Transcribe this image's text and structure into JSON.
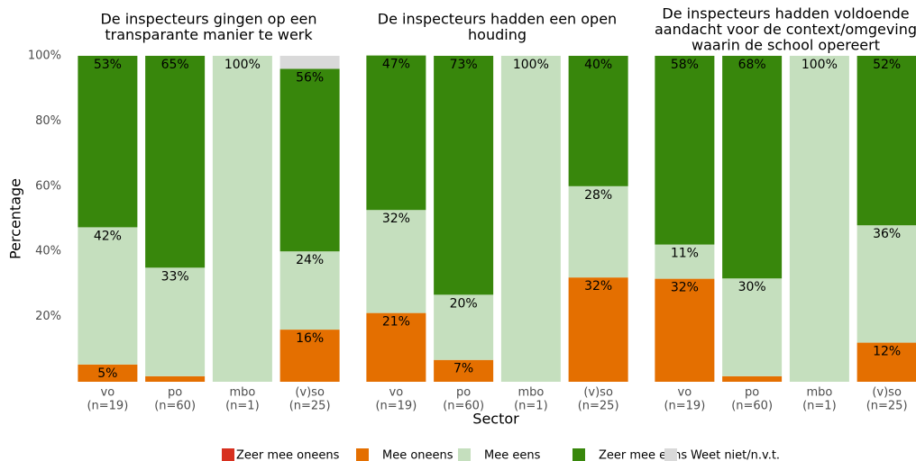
{
  "y_label": "Percentage",
  "x_label": "Sector",
  "chart_data": [
    {
      "type": "stacked_bar",
      "title": [
        "De inspecteurs gingen op een",
        "transparante manier te werk"
      ],
      "categories": [
        "vo",
        "po",
        "mbo",
        "(v)so"
      ],
      "n_labels": [
        "(n=19)",
        "(n=60)",
        "(n=1)",
        "(n=25)"
      ],
      "ylim": [
        0,
        100
      ],
      "yticks": [
        {
          "value": 20,
          "label": "20%"
        },
        {
          "value": 40,
          "label": "40%"
        },
        {
          "value": 60,
          "label": "60%"
        },
        {
          "value": 80,
          "label": "80%"
        },
        {
          "value": 100,
          "label": "100%"
        }
      ],
      "grid": false,
      "series": [
        {
          "name": "Zeer mee oneens",
          "color": "#d7301f",
          "values": [
            0,
            0,
            0,
            0
          ],
          "value_labels": [
            null,
            null,
            null,
            null
          ]
        },
        {
          "name": "Mee oneens",
          "color": "#e46f00",
          "values": [
            5.3,
            1.7,
            0,
            16
          ],
          "value_labels": [
            "5%",
            null,
            null,
            "16%"
          ]
        },
        {
          "name": "Mee eens",
          "color": "#c5dfbe",
          "values": [
            42.1,
            33.3,
            100,
            24
          ],
          "value_labels": [
            "42%",
            "33%",
            "100%",
            "24%"
          ]
        },
        {
          "name": "Zeer mee eens",
          "color": "#38870c",
          "values": [
            52.6,
            65,
            0,
            56
          ],
          "value_labels": [
            "53%",
            "65%",
            null,
            "56%"
          ]
        },
        {
          "name": "Weet niet/n.v.t.",
          "color": "#d9d9d9",
          "values": [
            0,
            0,
            0,
            4
          ],
          "value_labels": [
            null,
            null,
            null,
            null
          ]
        }
      ]
    },
    {
      "type": "stacked_bar",
      "title": [
        "De inspecteurs hadden een open",
        "houding"
      ],
      "categories": [
        "vo",
        "po",
        "mbo",
        "(v)so"
      ],
      "n_labels": [
        "(n=19)",
        "(n=60)",
        "(n=1)",
        "(n=25)"
      ],
      "ylim": [
        0,
        100
      ],
      "series": [
        {
          "name": "Zeer mee oneens",
          "color": "#d7301f",
          "values": [
            0,
            0,
            0,
            0
          ],
          "value_labels": [
            null,
            null,
            null,
            null
          ]
        },
        {
          "name": "Mee oneens",
          "color": "#e46f00",
          "values": [
            21.1,
            6.7,
            0,
            32
          ],
          "value_labels": [
            "21%",
            "7%",
            null,
            "32%"
          ]
        },
        {
          "name": "Mee eens",
          "color": "#c5dfbe",
          "values": [
            31.6,
            20,
            100,
            28
          ],
          "value_labels": [
            "32%",
            "20%",
            "100%",
            "28%"
          ]
        },
        {
          "name": "Zeer mee eens",
          "color": "#38870c",
          "values": [
            47.4,
            73.3,
            0,
            40
          ],
          "value_labels": [
            "47%",
            "73%",
            null,
            "40%"
          ]
        },
        {
          "name": "Weet niet/n.v.t.",
          "color": "#d9d9d9",
          "values": [
            0,
            0,
            0,
            0
          ],
          "value_labels": [
            null,
            null,
            null,
            null
          ]
        }
      ]
    },
    {
      "type": "stacked_bar",
      "title": [
        "De inspecteurs hadden voldoende",
        "aandacht voor de context/omgeving",
        "waarin de school opereert"
      ],
      "categories": [
        "vo",
        "po",
        "mbo",
        "(v)so"
      ],
      "n_labels": [
        "(n=19)",
        "(n=60)",
        "(n=1)",
        "(n=25)"
      ],
      "ylim": [
        0,
        100
      ],
      "series": [
        {
          "name": "Zeer mee oneens",
          "color": "#d7301f",
          "values": [
            0,
            0,
            0,
            0
          ],
          "value_labels": [
            null,
            null,
            null,
            null
          ]
        },
        {
          "name": "Mee oneens",
          "color": "#e46f00",
          "values": [
            31.6,
            1.7,
            0,
            12
          ],
          "value_labels": [
            "32%",
            null,
            null,
            "12%"
          ]
        },
        {
          "name": "Mee eens",
          "color": "#c5dfbe",
          "values": [
            10.5,
            30,
            100,
            36
          ],
          "value_labels": [
            "11%",
            "30%",
            "100%",
            "36%"
          ]
        },
        {
          "name": "Zeer mee eens",
          "color": "#38870c",
          "values": [
            57.9,
            68.3,
            0,
            52
          ],
          "value_labels": [
            "58%",
            "68%",
            null,
            "52%"
          ]
        },
        {
          "name": "Weet niet/n.v.t.",
          "color": "#d9d9d9",
          "values": [
            0,
            0,
            0,
            0
          ],
          "value_labels": [
            null,
            null,
            null,
            null
          ]
        }
      ]
    }
  ]
}
